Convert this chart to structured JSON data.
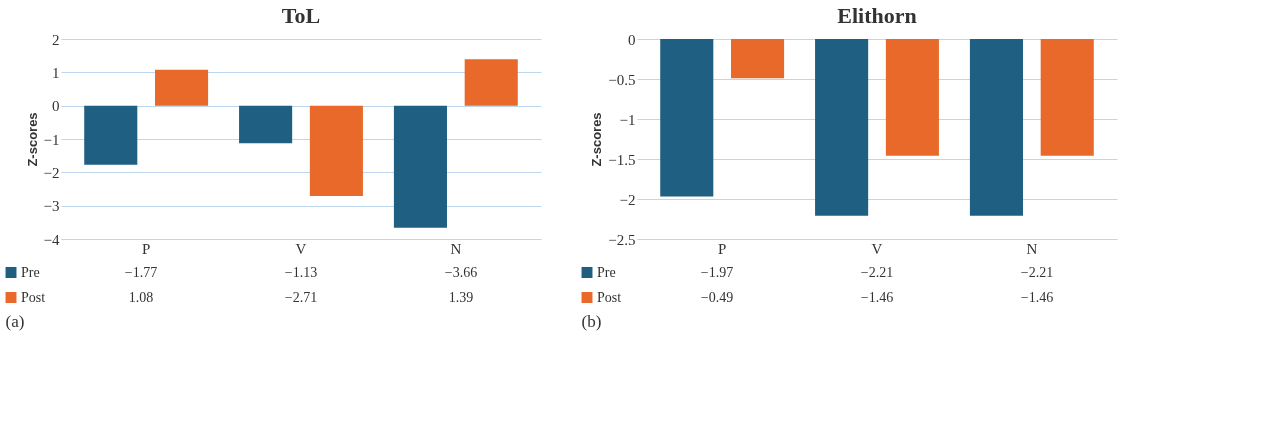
{
  "chart_data": [
    {
      "type": "bar",
      "title": "ToL",
      "ylabel": "Z-scores",
      "categories": [
        "P",
        "V",
        "N"
      ],
      "series": [
        {
          "name": "Pre",
          "color": "#1f5f82",
          "values": [
            -1.77,
            -1.13,
            -3.66
          ]
        },
        {
          "name": "Post",
          "color": "#e8692a",
          "values": [
            1.08,
            -2.71,
            1.39
          ]
        }
      ],
      "ylim": [
        -4,
        2
      ],
      "yticks": [
        -4,
        -3,
        -2,
        -1,
        0,
        1,
        2
      ],
      "grid": "y",
      "legend": "bottom",
      "data_labels": true,
      "annotations": [
        "(a)"
      ]
    },
    {
      "type": "bar",
      "title": "Elithorn",
      "ylabel": "Z-scores",
      "categories": [
        "P",
        "V",
        "N"
      ],
      "series": [
        {
          "name": "Pre",
          "color": "#1f5f82",
          "values": [
            -1.97,
            -2.21,
            -2.21
          ]
        },
        {
          "name": "Post",
          "color": "#e8692a",
          "values": [
            -0.49,
            -1.46,
            -1.46
          ]
        }
      ],
      "ylim": [
        -2.5,
        0
      ],
      "yticks": [
        -2.5,
        -2,
        -1.5,
        -1,
        -0.5,
        0
      ],
      "grid": "y",
      "legend": "bottom",
      "data_labels": true,
      "annotations": [
        "(b)"
      ]
    }
  ]
}
